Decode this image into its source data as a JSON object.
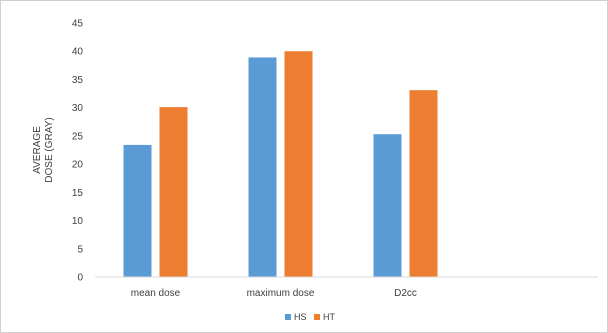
{
  "chart_data": {
    "type": "bar",
    "categories": [
      "mean dose",
      "maximum dose",
      "D2cc"
    ],
    "series": [
      {
        "name": "HS",
        "values": [
          23.4,
          38.9,
          25.3
        ]
      },
      {
        "name": "HT",
        "values": [
          30.1,
          40.0,
          33.1
        ]
      }
    ],
    "ylabel_lines": [
      "AVERAGE",
      "DOSE (GRAY)"
    ],
    "yticks": [
      0,
      5,
      10,
      15,
      20,
      25,
      30,
      35,
      40,
      45
    ],
    "ylim": [
      0,
      45
    ],
    "grid": false,
    "legend_position": "bottom-center",
    "colors": [
      "#5B9BD5",
      "#ED7D31"
    ]
  }
}
